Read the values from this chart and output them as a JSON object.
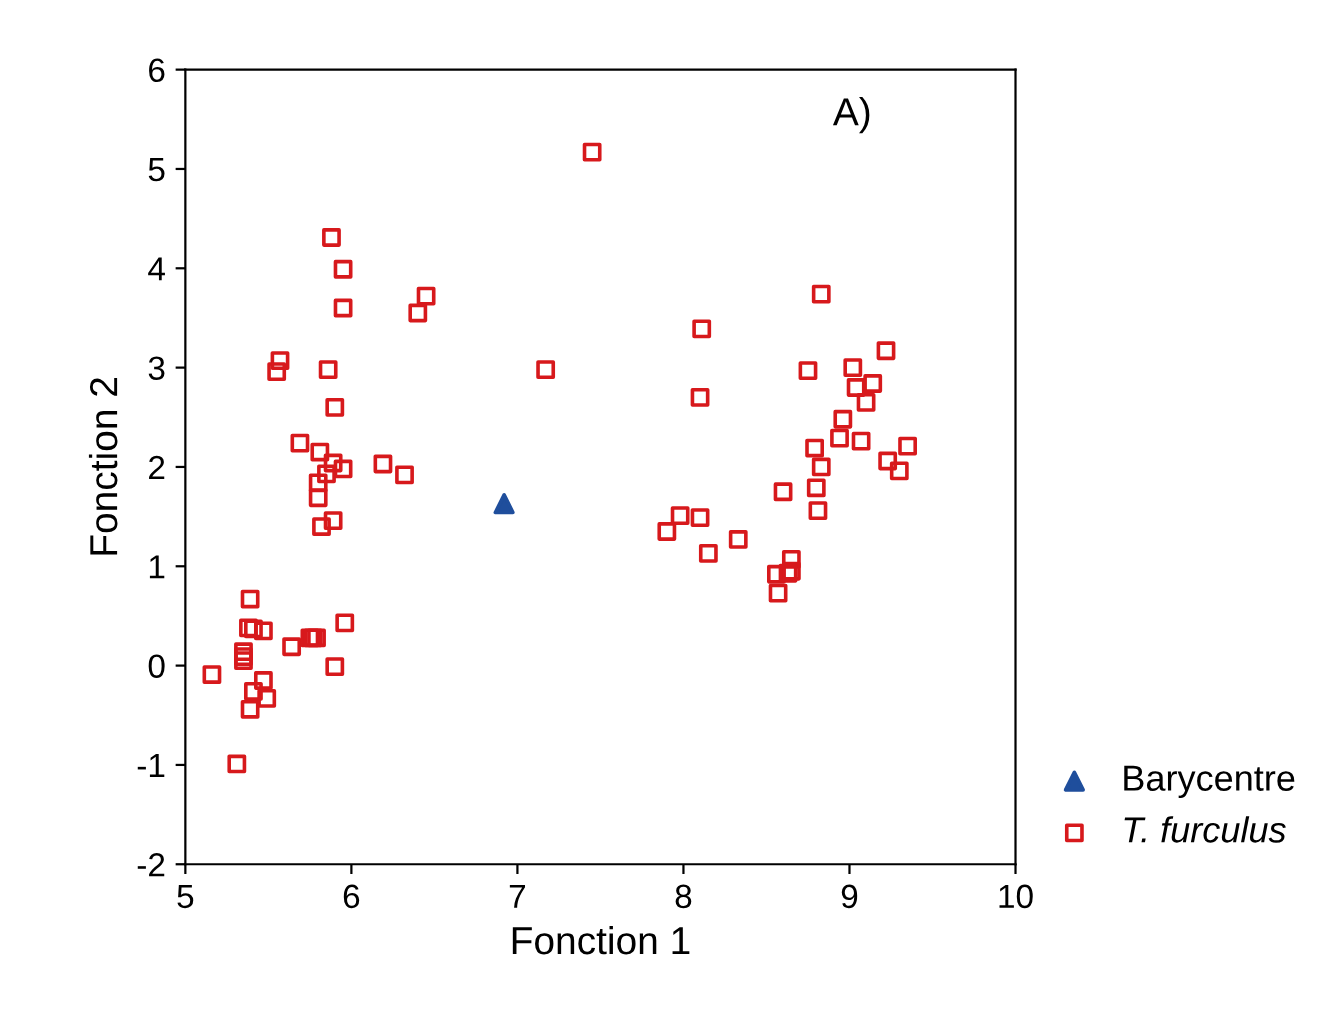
{
  "chart_data": {
    "type": "scatter",
    "xlabel": "Fonction 1",
    "ylabel": "Fonction 2",
    "annotations": [
      "A)"
    ],
    "xlim": [
      5,
      10
    ],
    "ylim": [
      -2,
      6
    ],
    "xticks": [
      5,
      6,
      7,
      8,
      9,
      10
    ],
    "yticks": [
      -2,
      -1,
      0,
      1,
      2,
      3,
      4,
      5,
      6
    ],
    "grid": false,
    "legend": "right",
    "series": [
      {
        "name": "Barycentre",
        "color": "#1f4e9c",
        "marker": "triangle",
        "x": [
          6.92
        ],
        "values": [
          1.63
        ]
      },
      {
        "name": "T. furculus",
        "color": "#d7191c",
        "marker": "square",
        "x": [
          5.88,
          5.95,
          5.95,
          6.45,
          6.4,
          5.57,
          5.55,
          5.86,
          7.17,
          5.9,
          5.69,
          5.81,
          5.89,
          5.95,
          5.85,
          5.8,
          5.8,
          6.19,
          6.32,
          5.89,
          5.82,
          7.45,
          5.39,
          5.38,
          5.41,
          5.47,
          5.35,
          5.35,
          5.35,
          5.16,
          5.47,
          5.41,
          5.49,
          5.39,
          5.31,
          5.64,
          5.75,
          5.77,
          5.79,
          5.96,
          5.9,
          8.83,
          8.11,
          8.1,
          8.75,
          9.22,
          9.02,
          9.04,
          9.14,
          9.1,
          8.96,
          8.94,
          9.07,
          8.79,
          8.83,
          9.35,
          9.23,
          9.3,
          8.6,
          8.8,
          8.81,
          7.98,
          8.1,
          7.9,
          8.15,
          8.33,
          8.65,
          8.65,
          8.56,
          8.63,
          8.57
        ],
        "values": [
          4.31,
          3.99,
          3.6,
          3.72,
          3.55,
          3.07,
          2.96,
          2.98,
          2.98,
          2.6,
          2.24,
          2.15,
          2.04,
          1.98,
          1.93,
          1.84,
          1.69,
          2.03,
          1.92,
          1.46,
          1.4,
          5.17,
          0.67,
          0.38,
          0.37,
          0.35,
          0.14,
          0.09,
          0.05,
          -0.09,
          -0.15,
          -0.26,
          -0.33,
          -0.44,
          -0.99,
          0.19,
          0.28,
          0.28,
          0.28,
          0.43,
          -0.01,
          3.74,
          3.39,
          2.7,
          2.97,
          3.17,
          3.0,
          2.8,
          2.84,
          2.65,
          2.48,
          2.29,
          2.26,
          2.19,
          2.0,
          2.21,
          2.06,
          1.96,
          1.75,
          1.79,
          1.56,
          1.51,
          1.49,
          1.35,
          1.13,
          1.27,
          1.07,
          0.95,
          0.92,
          0.93,
          0.73
        ]
      }
    ]
  }
}
